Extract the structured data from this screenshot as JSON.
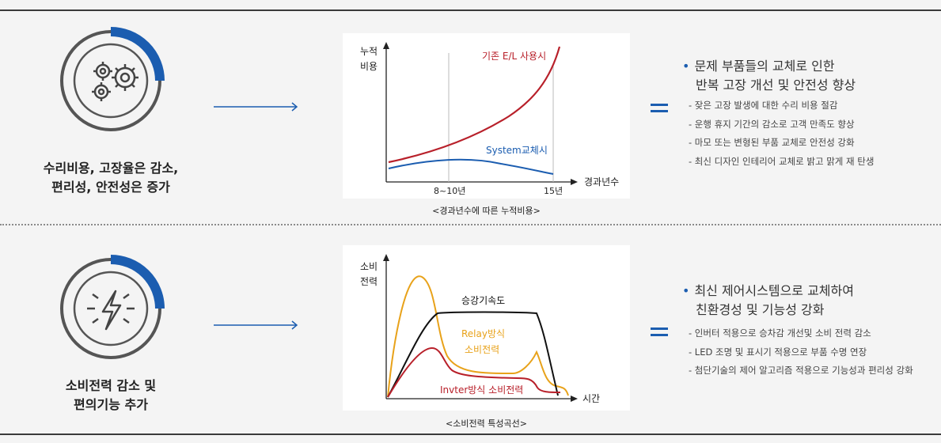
{
  "row1": {
    "icon": "gear-cycle-icon",
    "caption_line1": "수리비용, 고장율은 감소,",
    "caption_line2": "편리성, 안전성은 증가",
    "chart": {
      "y_label_line1": "누적",
      "y_label_line2": "비용",
      "x_label": "경과년수",
      "tick_1": "8~10년",
      "tick_2": "15년",
      "series_1_name": "기존 E/L 사용시",
      "series_2_name": "System교체시",
      "caption": "<경과년수에 따른 누적비용>"
    },
    "bullet_line1": "문제 부품들의 교체로 인한",
    "bullet_line2": "반복 고장 개선 및 안전성 향상",
    "subs": [
      "- 잦은 고장 발생에 대한 수리 비용 절감",
      "- 운행 휴지 기간의 감소로 고객 만족도 향상",
      "- 마모 또는 변형된 부품 교체로 안전성 강화",
      "- 최신 디자인 인테리어 교체로 밝고 맑게 재 탄생"
    ]
  },
  "row2": {
    "icon": "lightning-cycle-icon",
    "caption_line1": "소비전력 감소 및",
    "caption_line2": "편의기능 추가",
    "chart": {
      "y_label_line1": "소비",
      "y_label_line2": "전력",
      "x_label": "시간",
      "series_speed_name": "승강기속도",
      "series_relay_name_line1": "Relay방식",
      "series_relay_name_line2": "소비전력",
      "series_inverter_name": "Invter방식 소비전력",
      "caption": "<소비전력 특성곡선>"
    },
    "bullet_line1": "최신 제어시스템으로 교체하여",
    "bullet_line2": "친환경성 및 기능성 강화",
    "subs": [
      "- 인버터 적용으로 승차감 개선및 소비 전력 감소",
      "- LED 조명 및 표시기 적용으로 부품 수명 연장",
      "- 첨단기술의  제어 알고리즘 적용으로 기능성과 편리성 강화"
    ]
  },
  "colors": {
    "accent_blue": "#1b5db0",
    "red": "#b8202a",
    "orange": "#e8a21a",
    "black": "#111111"
  }
}
